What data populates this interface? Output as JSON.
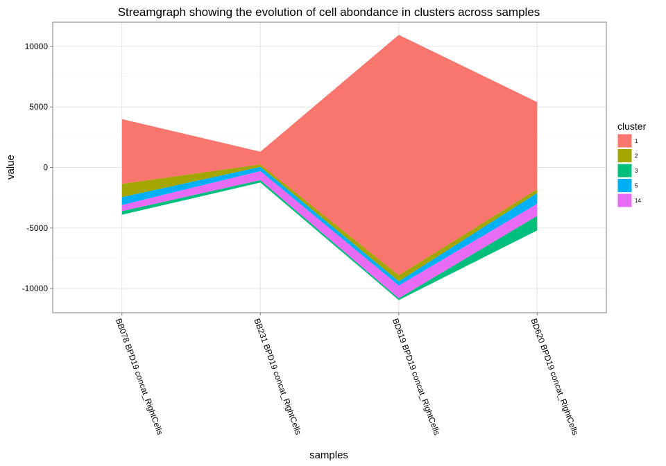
{
  "chart_data": {
    "type": "area",
    "title": "Streamgraph showing the evolution of cell abondance in clusters across samples",
    "xlabel": "samples",
    "ylabel": "value",
    "categories": [
      "BB078 BPD19 concat_RightCells",
      "BB231 BPD19 concat_RightCells",
      "BD619 BPD19 concat_RightCells",
      "BD620 BPD19 concat_RightCells"
    ],
    "ylim": [
      -12000,
      12000
    ],
    "yticks": [
      -10000,
      -5000,
      0,
      5000,
      10000
    ],
    "y_tick_labels": [
      "-10000",
      "-5000",
      "0",
      "5000",
      "10000"
    ],
    "grid": true,
    "legend": {
      "title": "cluster",
      "position": "right"
    },
    "stream_baseline": [
      -3900,
      -1250,
      -10950,
      -5200
    ],
    "series": [
      {
        "name": "3",
        "color": "#00BF7D",
        "values": [
          300,
          200,
          150,
          1200
        ]
      },
      {
        "name": "14",
        "color": "#E76BF3",
        "values": [
          500,
          750,
          1050,
          1000
        ]
      },
      {
        "name": "5",
        "color": "#00B0F6",
        "values": [
          650,
          350,
          350,
          900
        ]
      },
      {
        "name": "2",
        "color": "#A3A500",
        "values": [
          1100,
          200,
          500,
          300
        ]
      },
      {
        "name": "1",
        "color": "#F8766D",
        "values": [
          5350,
          1050,
          19850,
          7200
        ]
      }
    ],
    "legend_order": [
      "1",
      "2",
      "3",
      "5",
      "14"
    ]
  }
}
